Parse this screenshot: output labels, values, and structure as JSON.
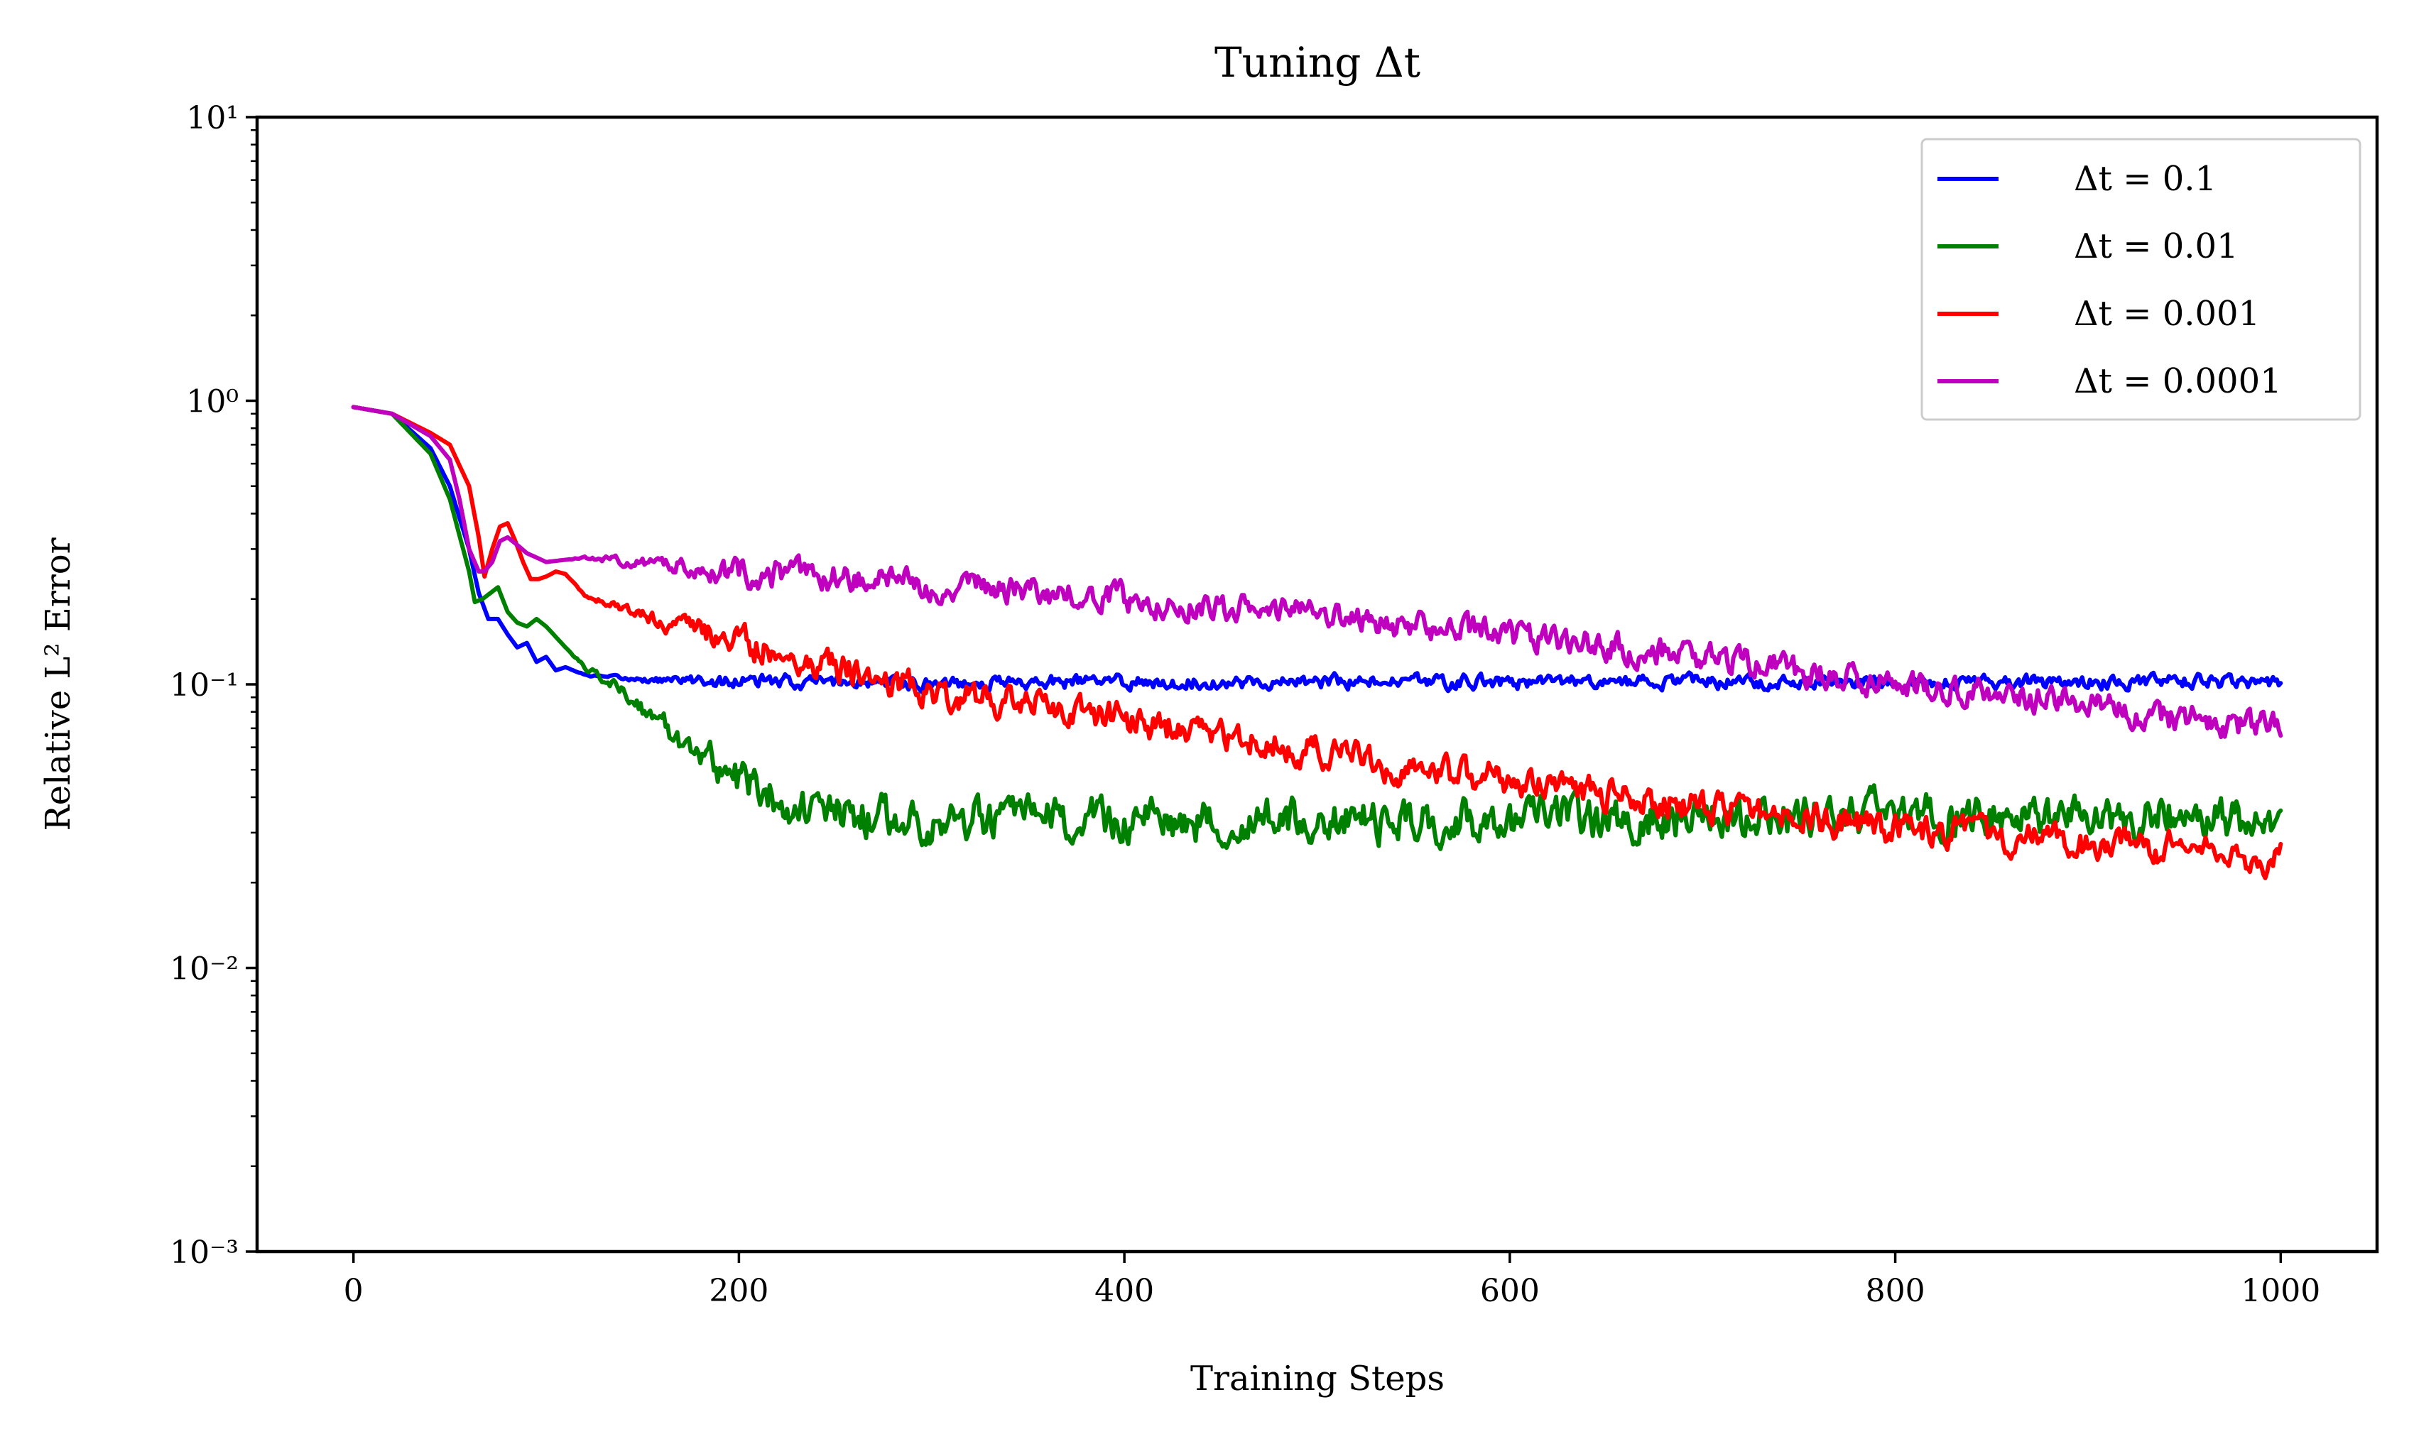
{
  "chart_data": {
    "type": "line",
    "title": "Tuning Δt",
    "xlabel": "Training Steps",
    "ylabel": "Relative L² Error",
    "xlim": [
      -50,
      1050
    ],
    "ylim": [
      0.001,
      10
    ],
    "yscale": "log",
    "grid": false,
    "legend_position": "top-right",
    "x_ticks": [
      0,
      200,
      400,
      600,
      800,
      1000
    ],
    "x_tick_labels": [
      "0",
      "200",
      "400",
      "600",
      "800",
      "1000"
    ],
    "y_ticks": [
      0.001,
      0.01,
      0.1,
      1,
      10
    ],
    "y_tick_labels": [
      "10⁻³",
      "10⁻²",
      "10⁻¹",
      "10⁰",
      "10¹"
    ],
    "series": [
      {
        "name": "Δt = 0.1",
        "color": "#0000ff",
        "noise": 0.02,
        "x": [
          0,
          20,
          40,
          50,
          60,
          65,
          70,
          75,
          80,
          85,
          90,
          95,
          100,
          105,
          110,
          120,
          130,
          150,
          200,
          300,
          400,
          500,
          600,
          700,
          800,
          900,
          1000
        ],
        "y": [
          0.95,
          0.9,
          0.68,
          0.5,
          0.3,
          0.21,
          0.17,
          0.17,
          0.15,
          0.135,
          0.14,
          0.12,
          0.125,
          0.112,
          0.115,
          0.108,
          0.106,
          0.104,
          0.102,
          0.102,
          0.102,
          0.102,
          0.102,
          0.102,
          0.102,
          0.102,
          0.102
        ]
      },
      {
        "name": "Δt = 0.01",
        "color": "#008000",
        "noise": 0.06,
        "x": [
          0,
          20,
          40,
          50,
          60,
          63,
          67,
          75,
          80,
          85,
          90,
          95,
          100,
          110,
          120,
          140,
          160,
          180,
          200,
          220,
          240,
          300,
          400,
          500,
          600,
          700,
          800,
          850,
          900,
          950,
          1000
        ],
        "y": [
          0.95,
          0.9,
          0.65,
          0.45,
          0.25,
          0.195,
          0.2,
          0.22,
          0.18,
          0.165,
          0.16,
          0.17,
          0.16,
          0.135,
          0.115,
          0.095,
          0.072,
          0.057,
          0.046,
          0.04,
          0.035,
          0.033,
          0.033,
          0.033,
          0.033,
          0.034,
          0.035,
          0.034,
          0.033,
          0.035,
          0.031
        ]
      },
      {
        "name": "Δt = 0.001",
        "color": "#ff0000",
        "noise": 0.045,
        "x": [
          0,
          20,
          40,
          50,
          60,
          65,
          68,
          72,
          76,
          80,
          84,
          88,
          92,
          96,
          100,
          105,
          110,
          115,
          120,
          130,
          150,
          200,
          250,
          300,
          350,
          400,
          450,
          500,
          550,
          600,
          650,
          700,
          750,
          800,
          850,
          900,
          950,
          1000
        ],
        "y": [
          0.95,
          0.9,
          0.77,
          0.7,
          0.5,
          0.33,
          0.24,
          0.3,
          0.36,
          0.37,
          0.32,
          0.27,
          0.235,
          0.235,
          0.24,
          0.25,
          0.245,
          0.225,
          0.205,
          0.195,
          0.175,
          0.14,
          0.115,
          0.095,
          0.085,
          0.075,
          0.066,
          0.058,
          0.05,
          0.046,
          0.041,
          0.037,
          0.034,
          0.031,
          0.029,
          0.027,
          0.026,
          0.024
        ]
      },
      {
        "name": "Δt = 0.0001",
        "color": "#bf00bf",
        "noise": 0.04,
        "x": [
          0,
          20,
          40,
          50,
          55,
          60,
          65,
          68,
          72,
          76,
          80,
          85,
          90,
          95,
          100,
          110,
          120,
          200,
          300,
          400,
          500,
          600,
          700,
          800,
          900,
          950,
          1000
        ],
        "y": [
          0.95,
          0.9,
          0.75,
          0.62,
          0.45,
          0.3,
          0.25,
          0.25,
          0.27,
          0.32,
          0.33,
          0.31,
          0.29,
          0.28,
          0.27,
          0.275,
          0.28,
          0.25,
          0.225,
          0.2,
          0.175,
          0.148,
          0.125,
          0.1,
          0.085,
          0.075,
          0.07
        ]
      }
    ]
  }
}
